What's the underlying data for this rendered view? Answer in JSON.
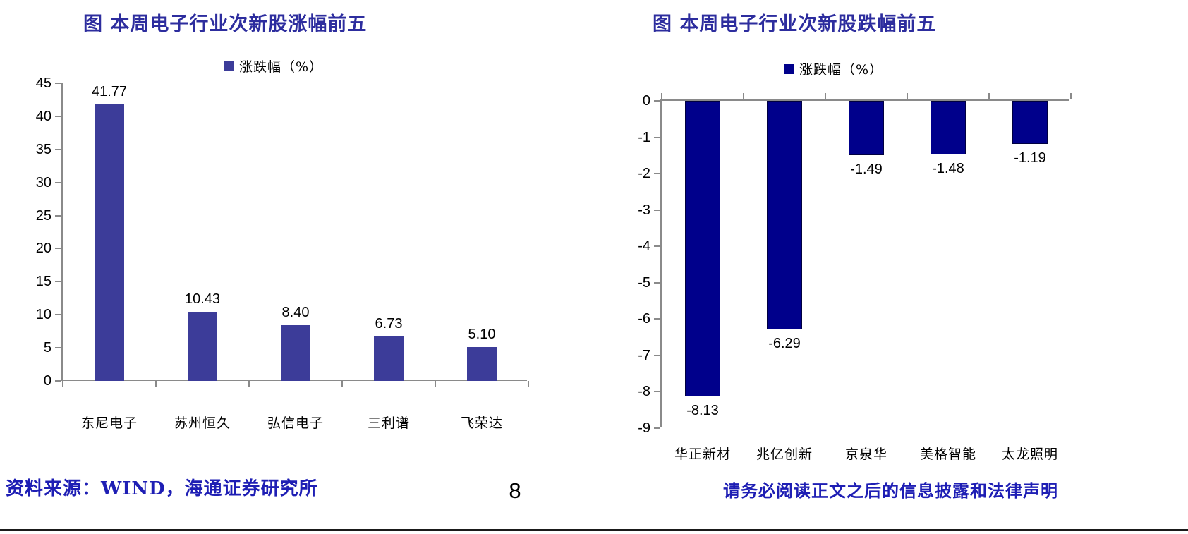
{
  "page": {
    "colors": {
      "title_blue": "#2D2D9E",
      "footer_blue": "#1E1EB4",
      "axis_gray": "#8A8A8A"
    },
    "footer": {
      "source": "资料来源：WIND，海通证券研究所",
      "page_number": "8",
      "disclaimer": "请务必阅读正文之后的信息披露和法律声明"
    }
  },
  "chart_data": [
    {
      "type": "bar",
      "title": "图 本周电子行业次新股涨幅前五",
      "legend": "涨跌幅（%）",
      "legend_position": "top",
      "grid": false,
      "categories": [
        "东尼电子",
        "苏州恒久",
        "弘信电子",
        "三利谱",
        "飞荣达"
      ],
      "values": [
        41.77,
        10.43,
        8.4,
        6.73,
        5.1
      ],
      "value_labels": [
        "41.77",
        "10.43",
        "8.40",
        "6.73",
        "5.10"
      ],
      "ylim": [
        0,
        45
      ],
      "ytick_step": 5,
      "bar_color": "#3C3C99",
      "bar_border": ""
    },
    {
      "type": "bar",
      "title": "图 本周电子行业次新股跌幅前五",
      "legend": "涨跌幅（%）",
      "legend_position": "top",
      "grid": false,
      "categories": [
        "华正新材",
        "兆亿创新",
        "京泉华",
        "美格智能",
        "太龙照明"
      ],
      "values": [
        -8.13,
        -6.29,
        -1.49,
        -1.48,
        -1.19
      ],
      "value_labels": [
        "-8.13",
        "-6.29",
        "-1.49",
        "-1.48",
        "-1.19"
      ],
      "ylim": [
        -9,
        0
      ],
      "ytick_step": 1,
      "bar_color": "#00008B",
      "bar_border": "#000040"
    }
  ]
}
